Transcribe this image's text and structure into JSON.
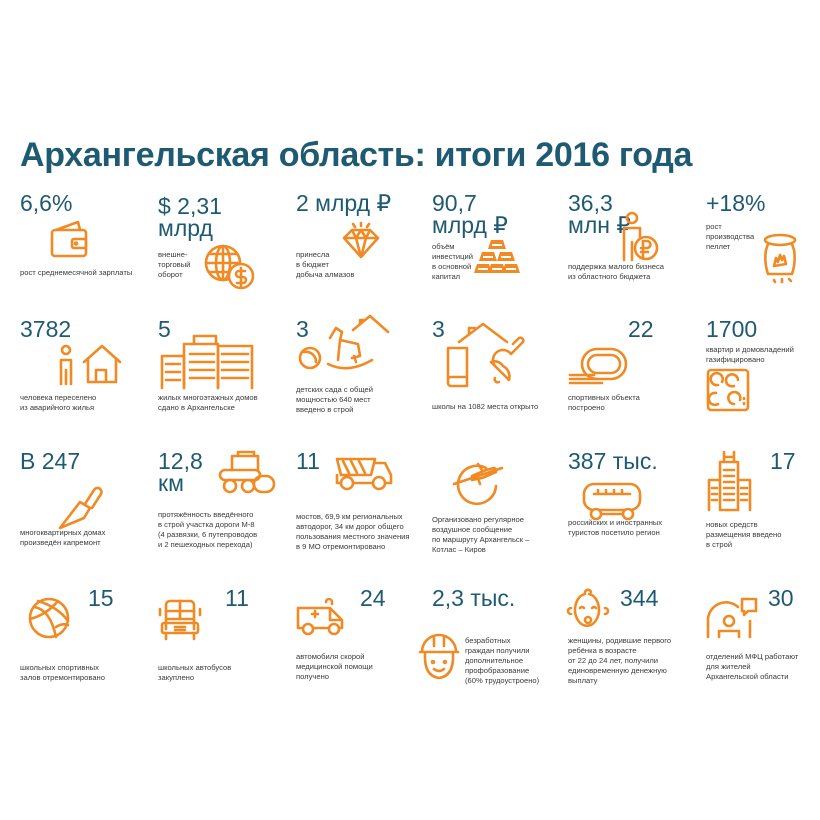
{
  "title": "Архангельская область: итоги 2016 года",
  "colors": {
    "heading": "#1f5a73",
    "accent": "#f08a24",
    "text": "#3a3a3a"
  },
  "cells": [
    {
      "value": "6,6%",
      "label": "рост среднемесячной зарплаты",
      "icon": "wallet-icon"
    },
    {
      "value": "$ 2,31\nмлрд",
      "label": "внешне-\nторговый\nоборот",
      "icon": "globe-dollar-icon"
    },
    {
      "value": "2 млрд ₽",
      "label": "принесла\nв бюджет\nдобыча алмазов",
      "icon": "diamond-icon"
    },
    {
      "value": "90,7\nмлрд ₽",
      "label": "объём\nинвестиций\nв основной\nкапитал",
      "icon": "gold-bars-icon"
    },
    {
      "value": "36,3\nмлн ₽",
      "label": "поддержка малого бизнеса\nиз областного бюджета",
      "icon": "person-ruble-icon"
    },
    {
      "value": "+18%",
      "label": "рост\nпроизводства\nпеллет",
      "icon": "pellet-bag-icon"
    },
    {
      "value": "3782",
      "label": "человека переселено\nиз аварийного жилья",
      "icon": "person-house-icon"
    },
    {
      "value": "5",
      "label": "жилых многоэтажных домов\nсдано в Архангельске",
      "icon": "apartment-buildings-icon"
    },
    {
      "value": "3",
      "label": "детских сада с общей\nмощностью 640 мест\nвведено в строй",
      "icon": "rocking-horse-icon"
    },
    {
      "value": "3",
      "label": "школы на 1082 места открыто",
      "icon": "school-book-bell-icon"
    },
    {
      "value": "22",
      "label": "спортивных объекта\nпостроено",
      "icon": "running-track-icon"
    },
    {
      "value": "1700",
      "label": "квартир и домовладений\nгазифицировано",
      "icon": "gas-stove-icon"
    },
    {
      "value": "В 247",
      "label": "многоквартирных домах\nпроизведён капремонт",
      "icon": "trowel-icon"
    },
    {
      "value": "12,8\nкм",
      "label": "протяжённость введённого\nв строй участка дороги М-8\n(4 развязки, 6 путепроводов\nи 2 пешеходных перехода)",
      "icon": "road-roller-icon"
    },
    {
      "value": "11",
      "label": "мостов, 69,9 км региональных\nавтодорог, 34 км дорог общего\nпользования местного значения\nв 9 МО отремонтировано",
      "icon": "dump-truck-icon"
    },
    {
      "value": "",
      "label": "Организовано регулярное\nвоздушное сообщение\nпо маршруту Архангельск –\nКотлас – Киров",
      "icon": "plane-globe-icon"
    },
    {
      "value": "387 тыс.",
      "label": "российских и иностранных\nтуристов посетило регион",
      "icon": "bus-icon"
    },
    {
      "value": "17",
      "label": "новых средств\nразмещения введено\nв строй",
      "icon": "hotel-icon"
    },
    {
      "value": "15",
      "label": "школьных спортивных\nзалов отремонтировано",
      "icon": "basketball-icon"
    },
    {
      "value": "11",
      "label": "школьных автобусов\nзакуплено",
      "icon": "school-bus-icon"
    },
    {
      "value": "24",
      "label": "автомобиля скорой\nмедицинской помощи\nполучено",
      "icon": "ambulance-icon"
    },
    {
      "value": "2,3 тыс.",
      "label": "безработных\nграждан получили\nдополнительное\nпрофобразование\n(60% трудоустроено)",
      "icon": "hard-hat-worker-icon"
    },
    {
      "value": "344",
      "label": "женщины, родившие первого\nребёнка в возрасте\nот 22 до 24 лет, получили\nединовременную денежную\nвыплату",
      "icon": "baby-icon"
    },
    {
      "value": "30",
      "label": "отделений МФЦ работают\nдля жителей\nАрхангельской области",
      "icon": "mfc-office-icon"
    }
  ]
}
